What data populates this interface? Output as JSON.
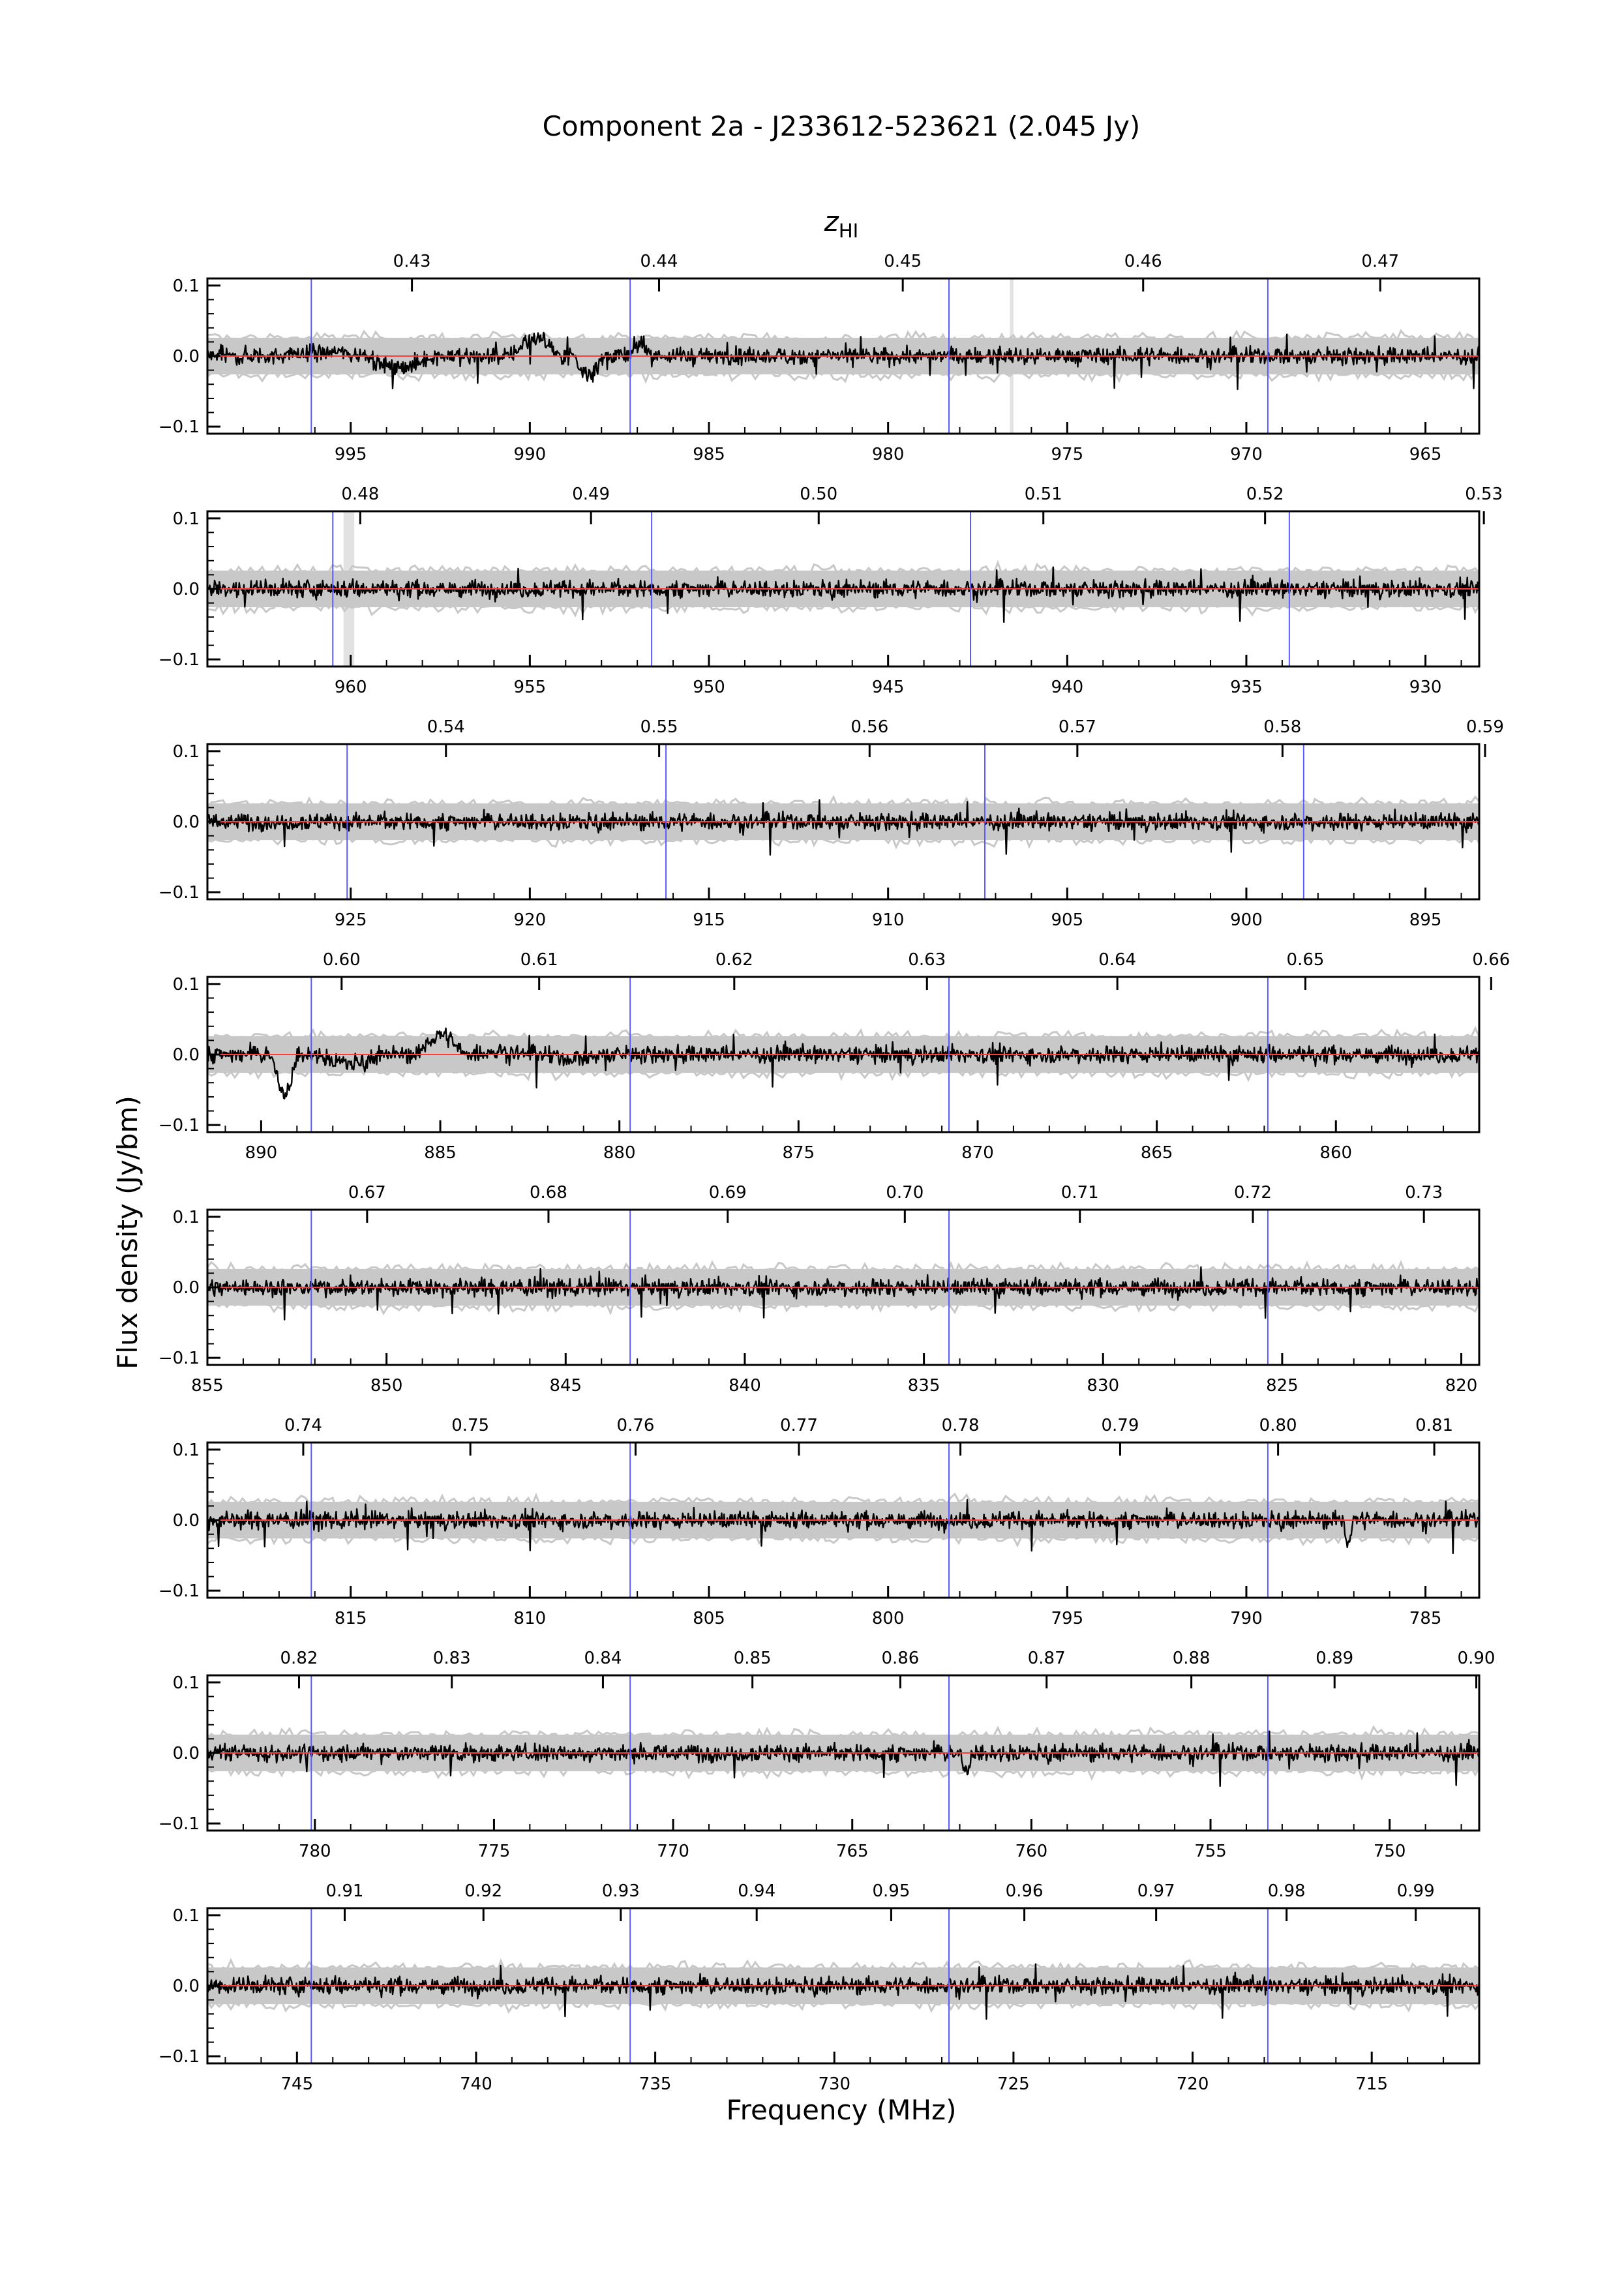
{
  "figure": {
    "title": "Component 2a - J233612-523621 (2.045 Jy)",
    "top_label_main": "z",
    "top_label_sub": "HI",
    "xlabel": "Frequency (MHz)",
    "ylabel": "Flux density (Jy/bm)"
  },
  "colors": {
    "spectrum": "#000000",
    "model": "#ff3b3b",
    "noise_band": "#c8c8c8",
    "flagged": "#e2e2e2",
    "markers": "#5a5aff"
  },
  "chart_data": [
    {
      "type": "line",
      "panel": 1,
      "xlim": [
        999.0,
        963.5
      ],
      "ylim": [
        -0.11,
        0.11
      ],
      "ytick_values": [
        -0.1,
        0.0,
        0.1
      ],
      "ytick_labels": [
        "−0.1",
        "0.0",
        "0.1"
      ],
      "xticks": [
        995,
        990,
        985,
        980,
        975,
        970,
        965
      ],
      "zticks": [
        0.43,
        0.44,
        0.45,
        0.46,
        0.47
      ],
      "markers": [
        996.1,
        987.2,
        978.3,
        969.4
      ],
      "flagged": [
        [
          976.6,
          976.5
        ]
      ],
      "features": [
        [
          997,
          994,
          0.006
        ],
        [
          994.5,
          992.5,
          -0.017
        ],
        [
          990.5,
          989,
          0.026
        ],
        [
          988.8,
          987.8,
          -0.025
        ],
        [
          987.2,
          986.5,
          0.018
        ]
      ]
    },
    {
      "type": "line",
      "panel": 2,
      "xlim": [
        964.0,
        928.5
      ],
      "ylim": [
        -0.11,
        0.11
      ],
      "ytick_values": [
        -0.1,
        0.0,
        0.1
      ],
      "ytick_labels": [
        "−0.1",
        "0.0",
        "0.1"
      ],
      "xticks": [
        960,
        955,
        950,
        945,
        940,
        935,
        930
      ],
      "zticks": [
        0.48,
        0.49,
        0.5,
        0.51,
        0.52,
        0.53
      ],
      "markers": [
        960.5,
        951.6,
        942.7,
        933.8
      ],
      "flagged": [
        [
          960.2,
          959.9
        ]
      ],
      "features": []
    },
    {
      "type": "line",
      "panel": 3,
      "xlim": [
        929.0,
        893.5
      ],
      "ylim": [
        -0.11,
        0.11
      ],
      "ytick_values": [
        -0.1,
        0.0,
        0.1
      ],
      "ytick_labels": [
        "−0.1",
        "0.0",
        "0.1"
      ],
      "xticks": [
        925,
        920,
        915,
        910,
        905,
        900,
        895
      ],
      "zticks": [
        0.54,
        0.55,
        0.56,
        0.57,
        0.58,
        0.59
      ],
      "markers": [
        925.1,
        916.2,
        907.3,
        898.4
      ],
      "flagged": [],
      "features": []
    },
    {
      "type": "line",
      "panel": 4,
      "xlim": [
        891.5,
        856.0
      ],
      "ylim": [
        -0.11,
        0.11
      ],
      "ytick_values": [
        -0.1,
        0.0,
        0.1
      ],
      "ytick_labels": [
        "−0.1",
        "0.0",
        "0.1"
      ],
      "xticks": [
        890,
        885,
        880,
        875,
        870,
        865,
        860
      ],
      "zticks": [
        0.6,
        0.61,
        0.62,
        0.63,
        0.64,
        0.65,
        0.66
      ],
      "markers": [
        888.6,
        879.7,
        870.8,
        861.9
      ],
      "flagged": [],
      "features": [
        [
          889.7,
          888.9,
          -0.055
        ],
        [
          888.4,
          886.4,
          -0.012
        ],
        [
          885.6,
          884.2,
          0.028
        ],
        [
          884.2,
          882.2,
          0.004
        ],
        [
          882.2,
          880.2,
          -0.006
        ]
      ]
    },
    {
      "type": "line",
      "panel": 5,
      "xlim": [
        855.0,
        819.5
      ],
      "ylim": [
        -0.11,
        0.11
      ],
      "ytick_values": [
        -0.1,
        0.0,
        0.1
      ],
      "ytick_labels": [
        "−0.1",
        "0.0",
        "0.1"
      ],
      "xticks": [
        855,
        850,
        845,
        840,
        835,
        830,
        825,
        820
      ],
      "zticks": [
        0.67,
        0.68,
        0.69,
        0.7,
        0.71,
        0.72,
        0.73
      ],
      "markers": [
        852.1,
        843.2,
        834.3,
        825.4
      ],
      "flagged": [],
      "features": []
    },
    {
      "type": "line",
      "panel": 6,
      "xlim": [
        819.0,
        783.5
      ],
      "ylim": [
        -0.11,
        0.11
      ],
      "ytick_values": [
        -0.1,
        0.0,
        0.1
      ],
      "ytick_labels": [
        "−0.1",
        "0.0",
        "0.1"
      ],
      "xticks": [
        815,
        810,
        805,
        800,
        795,
        790,
        785
      ],
      "zticks": [
        0.74,
        0.75,
        0.76,
        0.77,
        0.78,
        0.79,
        0.8,
        0.81
      ],
      "markers": [
        816.1,
        807.2,
        798.3,
        789.4
      ],
      "flagged": [],
      "features": [
        [
          787.3,
          787.0,
          -0.03
        ]
      ]
    },
    {
      "type": "line",
      "panel": 7,
      "xlim": [
        783.0,
        747.5
      ],
      "ylim": [
        -0.11,
        0.11
      ],
      "ytick_values": [
        -0.1,
        0.0,
        0.1
      ],
      "ytick_labels": [
        "−0.1",
        "0.0",
        "0.1"
      ],
      "xticks": [
        780,
        775,
        770,
        765,
        760,
        755,
        750
      ],
      "zticks": [
        0.82,
        0.83,
        0.84,
        0.85,
        0.86,
        0.87,
        0.88,
        0.89,
        0.9
      ],
      "markers": [
        780.1,
        771.2,
        762.3,
        753.4
      ],
      "flagged": [],
      "features": [
        [
          762.0,
          761.6,
          -0.025
        ]
      ]
    },
    {
      "type": "line",
      "panel": 8,
      "xlim": [
        747.5,
        712.0
      ],
      "ylim": [
        -0.11,
        0.11
      ],
      "ytick_values": [
        -0.1,
        0.0,
        0.1
      ],
      "ytick_labels": [
        "−0.1",
        "0.0",
        "0.1"
      ],
      "xticks": [
        745,
        740,
        735,
        730,
        725,
        720,
        715
      ],
      "zticks": [
        0.91,
        0.92,
        0.93,
        0.94,
        0.95,
        0.96,
        0.97,
        0.98,
        0.99
      ],
      "markers": [
        744.6,
        735.7,
        726.8,
        717.9
      ],
      "flagged": [],
      "features": []
    }
  ]
}
